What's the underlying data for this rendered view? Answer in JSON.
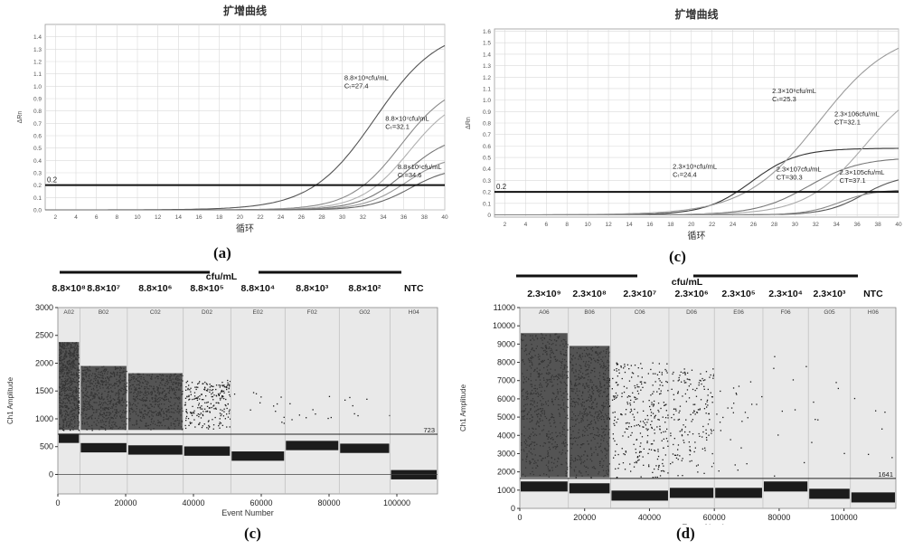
{
  "captions": {
    "a": "(a)",
    "c_top": "(c)",
    "c_bottom": "(c)",
    "d": "(d)"
  },
  "chart_data": [
    {
      "id": "a",
      "type": "line",
      "title": "扩增曲线",
      "xlabel": "循环",
      "ylabel": "ΔRn",
      "xlim": [
        1,
        40
      ],
      "ylim": [
        0,
        1.5
      ],
      "xticks": [
        "2",
        "4",
        "6",
        "8",
        "10",
        "12",
        "14",
        "16",
        "18",
        "20",
        "22",
        "24",
        "26",
        "28",
        "30",
        "32",
        "34",
        "36",
        "38",
        "40"
      ],
      "yticks": [
        "0.0",
        "0.1",
        "0.2",
        "0.3",
        "0.4",
        "0.5",
        "0.6",
        "0.7",
        "0.8",
        "0.9",
        "1.0",
        "1.1",
        "1.2",
        "1.3",
        "1.4"
      ],
      "threshold": {
        "value": 0.2,
        "label": "0.2"
      },
      "grid": true,
      "series": [
        {
          "ct": 27.4,
          "plateau": 1.48,
          "k": 0.32,
          "color": "#555555"
        },
        {
          "ct": 32.1,
          "plateau": 1.05,
          "k": 0.4,
          "color": "#8a8a8a"
        },
        {
          "ct": 33.4,
          "plateau": 0.95,
          "k": 0.42,
          "color": "#b0b0b0"
        },
        {
          "ct": 34.6,
          "plateau": 0.62,
          "k": 0.45,
          "color": "#777777"
        },
        {
          "ct": 35.8,
          "plateau": 0.45,
          "k": 0.48,
          "color": "#999999"
        },
        {
          "ct": 37.2,
          "plateau": 0.35,
          "k": 0.5,
          "color": "#666666"
        }
      ],
      "annotations": [
        {
          "line1": "8.8×10⁸cfu/mL",
          "line2": "Cₜ=27.4",
          "x": 30.2,
          "y": 1.05
        },
        {
          "line1": "8.8×10⁷cfu/mL",
          "line2": "Cₜ=32.1",
          "x": 34.2,
          "y": 0.72
        },
        {
          "line1": "8.8×10⁶cfu/mL",
          "line2": "Cₜ=34.6",
          "x": 35.4,
          "y": 0.33
        }
      ]
    },
    {
      "id": "b",
      "type": "line",
      "title": "扩增曲线",
      "xlabel": "循环",
      "ylabel": "ΔRn",
      "xlim": [
        1,
        40
      ],
      "ylim": [
        -0.02,
        1.62
      ],
      "xticks": [
        "2",
        "4",
        "6",
        "8",
        "10",
        "12",
        "14",
        "16",
        "18",
        "20",
        "22",
        "24",
        "26",
        "28",
        "30",
        "32",
        "34",
        "36",
        "38",
        "40"
      ],
      "yticks": [
        "0",
        "0.1",
        "0.2",
        "0.3",
        "0.4",
        "0.5",
        "0.6",
        "0.7",
        "0.8",
        "0.9",
        "1.0",
        "1.1",
        "1.2",
        "1.3",
        "1.4",
        "1.5",
        "1.6"
      ],
      "threshold": {
        "value": 0.2,
        "label": "0.2"
      },
      "grid": true,
      "series": [
        {
          "ct": 24.4,
          "plateau": 0.58,
          "k": 0.45,
          "color": "#333333"
        },
        {
          "ct": 25.3,
          "plateau": 1.62,
          "k": 0.28,
          "color": "#9a9a9a"
        },
        {
          "ct": 30.3,
          "plateau": 0.5,
          "k": 0.4,
          "color": "#777777"
        },
        {
          "ct": 32.1,
          "plateau": 1.2,
          "k": 0.35,
          "color": "#aaaaaa"
        },
        {
          "ct": 37.1,
          "plateau": 0.35,
          "k": 0.55,
          "color": "#555555"
        },
        {
          "ct": 38.2,
          "plateau": 0.22,
          "k": 0.6,
          "color": "#888888"
        }
      ],
      "annotations": [
        {
          "line1": "2.3×10⁸cfu/mL",
          "line2": "Cₜ=25.3",
          "x": 27.8,
          "y": 1.06
        },
        {
          "line1": "2.3×106cfu/mL",
          "line2": "CT=32.1",
          "x": 33.8,
          "y": 0.86
        },
        {
          "line1": "2.3×10⁹cfu/mL",
          "line2": "Cₜ=24.4",
          "x": 18.2,
          "y": 0.4
        },
        {
          "line1": "2.3×107cfu/mL",
          "line2": "CT=30.3",
          "x": 28.2,
          "y": 0.38
        },
        {
          "line1": "2.3×105cfu/mL",
          "line2": "CT=37.1",
          "x": 34.3,
          "y": 0.35
        }
      ]
    },
    {
      "id": "c",
      "type": "scatter",
      "unit_label": "cfu/mL",
      "xlabel": "Event Number",
      "ylabel": "Ch1 Amplitude",
      "xlim": [
        0,
        112000
      ],
      "ylim": [
        -350,
        3000
      ],
      "xticks": [
        0,
        20000,
        40000,
        60000,
        80000,
        100000
      ],
      "yticks": [
        0,
        500,
        1000,
        1500,
        2000,
        2500,
        3000
      ],
      "threshold": {
        "value": 723,
        "label": "723"
      },
      "wells": [
        {
          "well": "A02",
          "conc": "8.8×10⁸",
          "start": 0,
          "end": 6500,
          "pos_low": 800,
          "pos_high": 2380,
          "neg": 650,
          "density": 0.95
        },
        {
          "well": "B02",
          "conc": "8.8×10⁷",
          "start": 6500,
          "end": 20500,
          "pos_low": 800,
          "pos_high": 1950,
          "neg": 480,
          "density": 0.9
        },
        {
          "well": "C02",
          "conc": "8.8×10⁶",
          "start": 20500,
          "end": 37000,
          "pos_low": 800,
          "pos_high": 1820,
          "neg": 440,
          "density": 0.8
        },
        {
          "well": "D02",
          "conc": "8.8×10⁵",
          "start": 37000,
          "end": 51000,
          "pos_low": 800,
          "pos_high": 1700,
          "neg": 420,
          "density": 0.35
        },
        {
          "well": "E02",
          "conc": "8.8×10⁴",
          "start": 51000,
          "end": 67000,
          "pos_low": 800,
          "pos_high": 1500,
          "neg": 330,
          "density": 0.01
        },
        {
          "well": "F02",
          "conc": "8.8×10³",
          "start": 67000,
          "end": 83000,
          "pos_low": 800,
          "pos_high": 1500,
          "neg": 520,
          "density": 0.004
        },
        {
          "well": "G02",
          "conc": "8.8×10²",
          "start": 83000,
          "end": 98000,
          "pos_low": 800,
          "pos_high": 1400,
          "neg": 470,
          "density": 0.002
        },
        {
          "well": "H04",
          "conc": "NTC",
          "start": 98000,
          "end": 112000,
          "pos_low": 800,
          "pos_high": 1000,
          "neg": -5,
          "density": 0
        }
      ]
    },
    {
      "id": "d",
      "type": "scatter",
      "unit_label": "cfu/mL",
      "xlabel": "Event Number",
      "ylabel": "Ch1 Amplitude",
      "xlim": [
        0,
        116000
      ],
      "ylim": [
        0,
        11000
      ],
      "xticks": [
        0,
        20000,
        40000,
        60000,
        80000,
        100000
      ],
      "yticks": [
        0,
        1000,
        2000,
        3000,
        4000,
        5000,
        6000,
        7000,
        8000,
        9000,
        10000,
        11000
      ],
      "threshold": {
        "value": 1641,
        "label": "1641"
      },
      "wells": [
        {
          "well": "A06",
          "conc": "2.3×10⁹",
          "start": 0,
          "end": 15000,
          "pos_low": 1700,
          "pos_high": 9600,
          "neg": 1200,
          "density": 0.97
        },
        {
          "well": "B06",
          "conc": "2.3×10⁸",
          "start": 15000,
          "end": 28000,
          "pos_low": 1700,
          "pos_high": 8900,
          "neg": 1100,
          "density": 0.9
        },
        {
          "well": "C06",
          "conc": "2.3×10⁷",
          "start": 28000,
          "end": 46000,
          "pos_low": 1700,
          "pos_high": 8000,
          "neg": 700,
          "density": 0.45
        },
        {
          "well": "D06",
          "conc": "2.3×10⁶",
          "start": 46000,
          "end": 60000,
          "pos_low": 1700,
          "pos_high": 7700,
          "neg": 850,
          "density": 0.25
        },
        {
          "well": "E06",
          "conc": "2.3×10⁵",
          "start": 60000,
          "end": 75000,
          "pos_low": 1700,
          "pos_high": 7200,
          "neg": 850,
          "density": 0.03
        },
        {
          "well": "F06",
          "conc": "2.3×10⁴",
          "start": 75000,
          "end": 89000,
          "pos_low": 1700,
          "pos_high": 8500,
          "neg": 1200,
          "density": 0.004
        },
        {
          "well": "G05",
          "conc": "2.3×10³",
          "start": 89000,
          "end": 102000,
          "pos_low": 1700,
          "pos_high": 7000,
          "neg": 800,
          "density": 0.002
        },
        {
          "well": "H06",
          "conc": "NTC",
          "start": 102000,
          "end": 116000,
          "pos_low": 1700,
          "pos_high": 6500,
          "neg": 600,
          "density": 0.0005
        }
      ]
    }
  ]
}
